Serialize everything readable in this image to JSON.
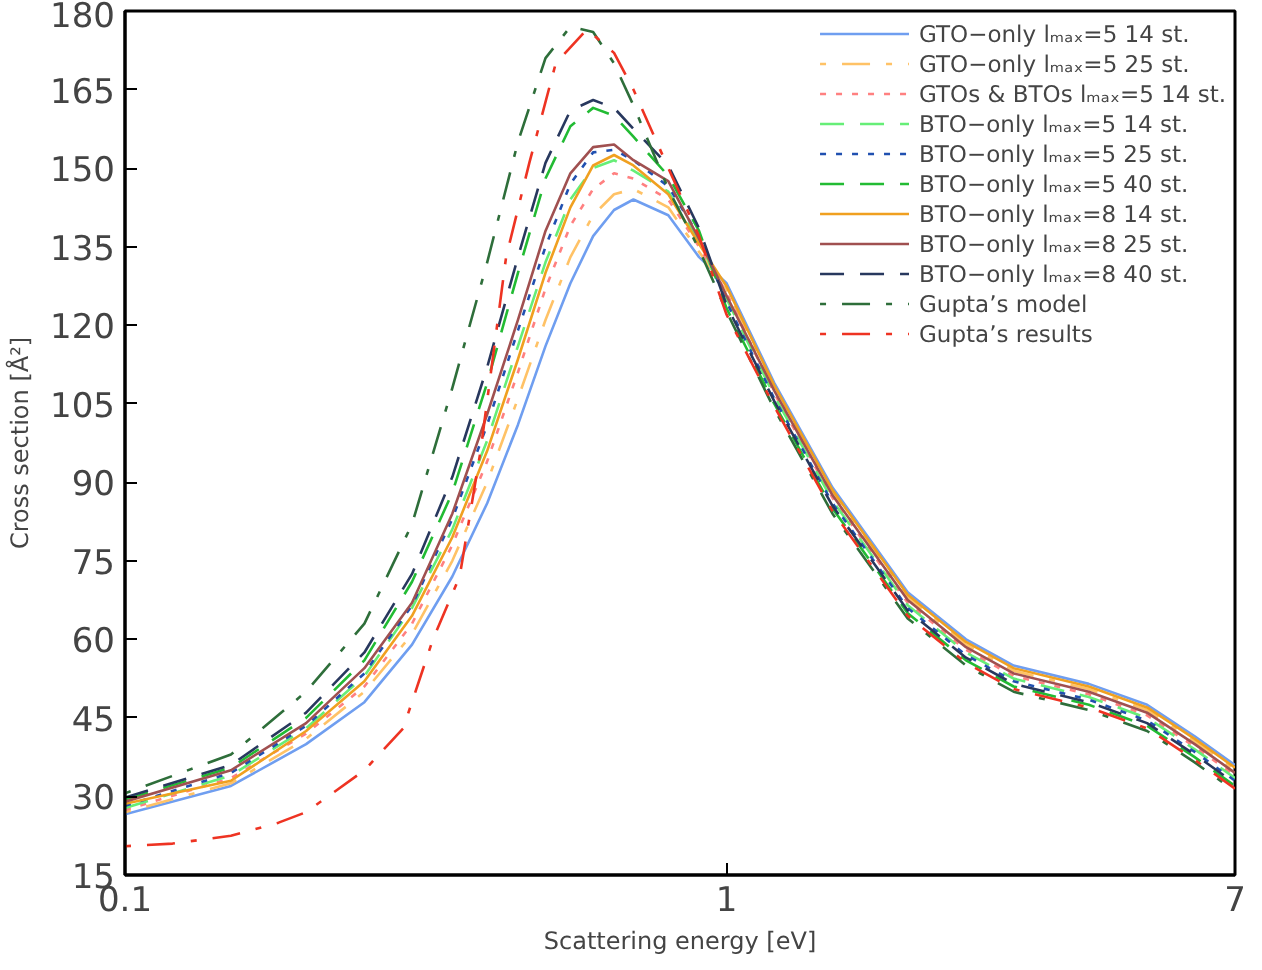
{
  "chart_data": {
    "type": "line",
    "xlabel": "Scattering energy [eV]",
    "ylabel": "Cross section [Å²]",
    "log": "x",
    "x": [
      0.1,
      0.15,
      0.2,
      0.25,
      0.3,
      0.35,
      0.4,
      0.45,
      0.5,
      0.55,
      0.6,
      0.65,
      0.7,
      0.8,
      0.9,
      1.0,
      1.2,
      1.5,
      2,
      2.5,
      3,
      4,
      5,
      6,
      7
    ],
    "xlim": [
      0.1,
      7
    ],
    "xticks": [
      0.1,
      1,
      7
    ],
    "ylim": [
      15,
      180
    ],
    "yticks": [
      15,
      30,
      45,
      60,
      75,
      90,
      105,
      120,
      135,
      150,
      165,
      180
    ],
    "grid": false,
    "legend": "top right",
    "marker": "none",
    "series": [
      {
        "name": "GTO−only lₘₐₓ=5 14 st.",
        "color": "#6f9ef0",
        "line_style": "solid",
        "values": [
          26.6,
          32,
          40,
          48,
          59,
          72,
          86,
          101,
          116,
          128,
          137,
          142,
          144,
          141,
          133,
          128,
          109,
          89,
          69,
          60,
          55,
          51.5,
          47.5,
          41.5,
          36
        ]
      },
      {
        "name": "GTO−only lₘₐₓ=5 25 st.",
        "color": "#ffc266",
        "line_style": "dashdot",
        "values": [
          27.0,
          32.5,
          41,
          50,
          61,
          75,
          90,
          106,
          121,
          133,
          141,
          145,
          146,
          142.5,
          134,
          126.8,
          108,
          88,
          68,
          59,
          54,
          50.5,
          46.5,
          40.5,
          35
        ]
      },
      {
        "name": "GTOs & BTOs lₘₐₓ=5 14 st.",
        "color": "#ff8080",
        "line_style": "dotted",
        "values": [
          27.4,
          33.5,
          42,
          51,
          63,
          78,
          94,
          111,
          127,
          139,
          146,
          149,
          148,
          144,
          135,
          126.2,
          107,
          87,
          67,
          58,
          53,
          49.5,
          45.5,
          39.5,
          34
        ]
      },
      {
        "name": "BTO−only lₘₐₓ=5 14 st.",
        "color": "#66ee77",
        "line_style": "dashed",
        "values": [
          27.8,
          34,
          43,
          53,
          66,
          81,
          98,
          116,
          132,
          144,
          150,
          151.5,
          149.5,
          145.5,
          136,
          125,
          106.5,
          86.5,
          66.5,
          57.5,
          52.5,
          49,
          45,
          39,
          33.5
        ]
      },
      {
        "name": "BTO−only lₘₐₓ=5 25 st.",
        "color": "#2050b0",
        "line_style": "dotted",
        "values": [
          28.2,
          34.5,
          43.5,
          53.5,
          66.5,
          83,
          101,
          119,
          135,
          147,
          153,
          153.5,
          151.5,
          146.5,
          137,
          124.4,
          106,
          86,
          66,
          57,
          52,
          48.5,
          44.5,
          38.5,
          33
        ]
      },
      {
        "name": "BTO−only lₘₐₓ=5 40 st.",
        "color": "#22bb33",
        "line_style": "dashed",
        "values": [
          29.4,
          35.5,
          45,
          56,
          71,
          88,
          109,
          130,
          148,
          158,
          161.5,
          160,
          156,
          148.5,
          138,
          123.2,
          105,
          85,
          65,
          56,
          51,
          47.5,
          43.5,
          37.5,
          32
        ]
      },
      {
        "name": "BTO−only lₘₐₓ=8 14 st.",
        "color": "#f0a020",
        "line_style": "solid",
        "values": [
          28.6,
          33,
          42.5,
          52,
          64.5,
          79.5,
          96,
          113.5,
          130,
          142.5,
          150.5,
          152.5,
          150.5,
          145,
          135.5,
          127.4,
          108.5,
          88.5,
          68.5,
          59.5,
          54.5,
          51,
          47,
          41,
          35.5
        ]
      },
      {
        "name": "BTO−only lₘₐₓ=8 25 st.",
        "color": "#a05050",
        "line_style": "solid",
        "values": [
          29.0,
          35,
          44,
          54.5,
          67,
          84,
          103,
          121,
          138,
          149,
          154,
          154.5,
          151.5,
          147.5,
          136.5,
          125.6,
          107.5,
          87.5,
          67.5,
          58.5,
          53.5,
          50,
          46,
          40,
          34.5
        ]
      },
      {
        "name": "BTO−only lₘₐₓ=8 40 st.",
        "color": "#28385e",
        "line_style": "dashed",
        "values": [
          29.8,
          36,
          46,
          57.5,
          72.5,
          91,
          112,
          133,
          151,
          161,
          163,
          161.5,
          157.5,
          150.5,
          138.5,
          123.8,
          105.5,
          85.5,
          65.5,
          56.5,
          51.5,
          48,
          44,
          38,
          32.5
        ]
      },
      {
        "name": "Gupta’s model",
        "color": "#2e6e3a",
        "line_style": "dashdot",
        "values": [
          30.6,
          38,
          50,
          63,
          82,
          108,
          132,
          155,
          171,
          177,
          176,
          170,
          162,
          146,
          134.5,
          122.6,
          104,
          84,
          64,
          55,
          50,
          46.5,
          42.5,
          36.5,
          31
        ]
      },
      {
        "name": "Gupta’s results",
        "color": "#ee3322",
        "line_style": "dashdot",
        "x": [
          0.1,
          0.12,
          0.15,
          0.18,
          0.2,
          0.25,
          0.29,
          0.325,
          0.36,
          0.39,
          0.43,
          0.47,
          0.52,
          0.586,
          0.65,
          0.7,
          0.8,
          0.9,
          1.0,
          1.2,
          1.5,
          2,
          2.5,
          3,
          4,
          5,
          6,
          7
        ],
        "values": [
          20.5,
          21,
          22.5,
          25,
          27,
          35,
          43,
          60,
          72,
          96,
          133,
          151,
          170,
          176.5,
          172,
          165,
          150,
          137,
          122,
          104.5,
          84.5,
          64.5,
          55.5,
          50.5,
          47,
          43,
          37,
          31.5
        ]
      }
    ]
  }
}
